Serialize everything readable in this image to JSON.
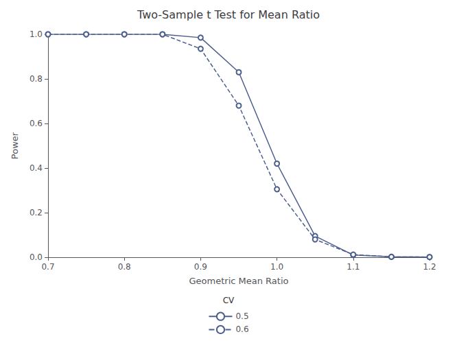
{
  "chart_data": {
    "type": "line",
    "title": "Two-Sample t Test for Mean Ratio",
    "x_label": "Geometric Mean Ratio",
    "y_label": "Power",
    "x": [
      0.7,
      0.75,
      0.8,
      0.85,
      0.9,
      0.95,
      1.0,
      1.05,
      1.1,
      1.15,
      1.2
    ],
    "series": [
      {
        "name": "0.5",
        "color": "#4d5f8e",
        "line_style": "solid",
        "marker": "circle",
        "values": [
          1.0,
          1.0,
          1.0,
          1.0,
          0.985,
          0.83,
          0.42,
          0.095,
          0.01,
          0.002,
          0.001
        ]
      },
      {
        "name": "0.6",
        "color": "#4d5f8e",
        "line_style": "dashed",
        "marker": "circle",
        "values": [
          1.0,
          1.0,
          1.0,
          1.0,
          0.935,
          0.68,
          0.305,
          0.08,
          0.012,
          0.002,
          0.001
        ]
      }
    ],
    "xlim": [
      0.7,
      1.2
    ],
    "ylim": [
      0.0,
      1.0
    ],
    "xticks": [
      0.7,
      0.8,
      0.9,
      {
        "value": 1.0,
        "label": "1.0"
      },
      1.1,
      1.2
    ],
    "yticks": [
      {
        "value": 0,
        "label": "0.0"
      },
      0.2,
      0.4,
      0.6,
      0.8,
      {
        "value": 1.0,
        "label": "1.0"
      }
    ],
    "grid": false,
    "legend": "bottom",
    "legend_title": "CV"
  }
}
